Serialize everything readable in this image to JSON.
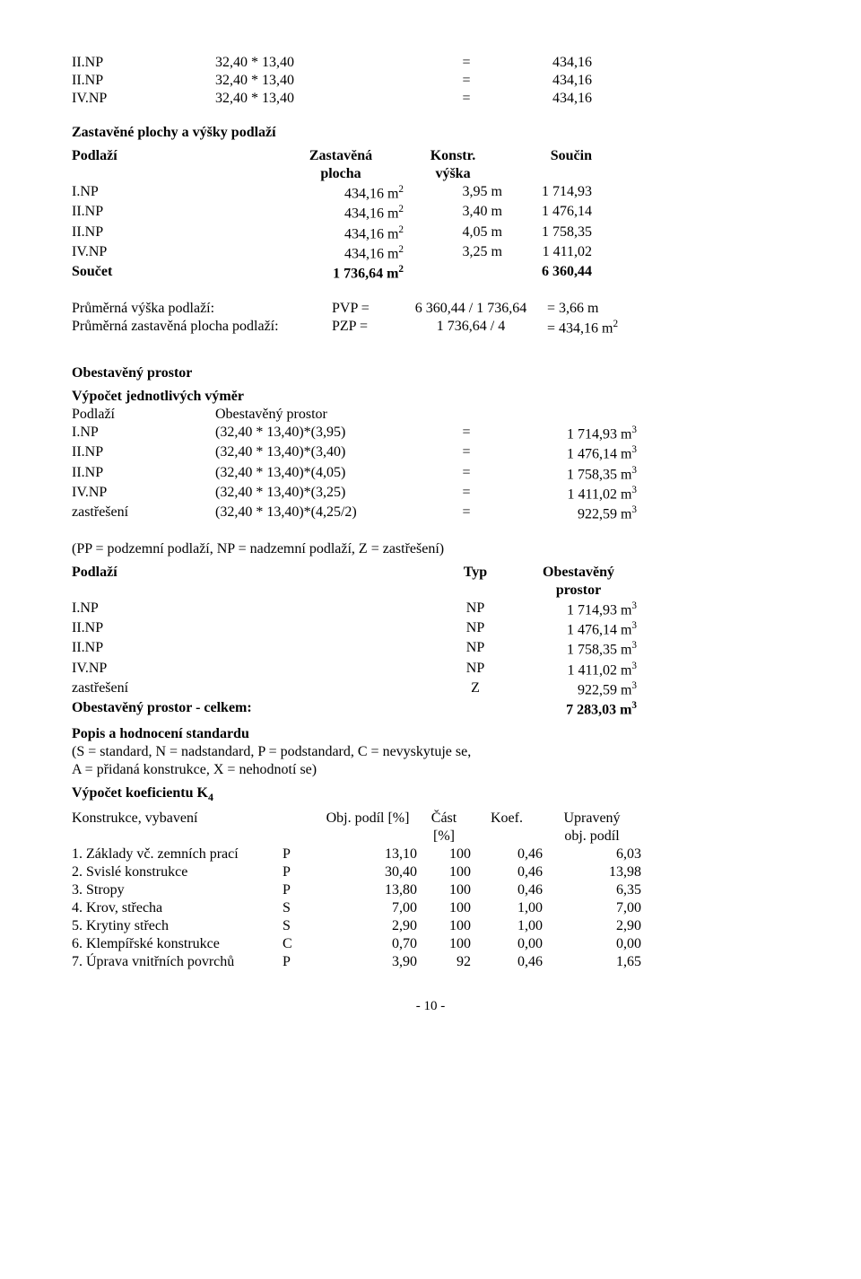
{
  "calc1": {
    "rows": [
      {
        "label": "II.NP",
        "expr": "32,40 * 13,40",
        "eq": "=",
        "val": "434,16"
      },
      {
        "label": "II.NP",
        "expr": "32,40 * 13,40",
        "eq": "=",
        "val": "434,16"
      },
      {
        "label": "IV.NP",
        "expr": "32,40 * 13,40",
        "eq": "=",
        "val": "434,16"
      }
    ]
  },
  "zas_title": "Zastavěné plochy a výšky podlaží",
  "zas_header": {
    "c1": "Podlaží",
    "c2a": "Zastavěná",
    "c2b": "plocha",
    "c3a": "Konstr.",
    "c3b": "výška",
    "c4": "Součin"
  },
  "zas_rows": [
    {
      "c1": "I.NP",
      "c2": "434,16 m",
      "c2sup": "2",
      "c3": "3,95 m",
      "c4": "1 714,93"
    },
    {
      "c1": "II.NP",
      "c2": "434,16 m",
      "c2sup": "2",
      "c3": "3,40 m",
      "c4": "1 476,14"
    },
    {
      "c1": "II.NP",
      "c2": "434,16 m",
      "c2sup": "2",
      "c3": "4,05 m",
      "c4": "1 758,35"
    },
    {
      "c1": "IV.NP",
      "c2": "434,16 m",
      "c2sup": "2",
      "c3": "3,25 m",
      "c4": "1 411,02"
    }
  ],
  "zas_sum": {
    "c1": "Součet",
    "c2": "1 736,64 m",
    "c2sup": "2",
    "c4": "6 360,44"
  },
  "pvp": {
    "l1": "Průměrná výška podlaží:",
    "l2": "Průměrná zastavěná plocha podlaží:",
    "k1": "PVP =",
    "k2": "PZP =",
    "e1": "6 360,44 / 1 736,64",
    "e2": "1 736,64 / 4",
    "r1": "= 3,66 m",
    "r2": "= 434,16 m",
    "r2sup": "2"
  },
  "obest_title": "Obestavěný prostor",
  "vjv_title": "Výpočet jednotlivých výměr",
  "vjv_header": {
    "c1": "Podlaží",
    "c2": "Obestavěný prostor"
  },
  "vjv_rows": [
    {
      "c1": "I.NP",
      "c2": "(32,40 * 13,40)*(3,95)",
      "eq": "=",
      "v": "1 714,93 m",
      "sup": "3"
    },
    {
      "c1": "II.NP",
      "c2": "(32,40 * 13,40)*(3,40)",
      "eq": "=",
      "v": "1 476,14 m",
      "sup": "3"
    },
    {
      "c1": "II.NP",
      "c2": "(32,40 * 13,40)*(4,05)",
      "eq": "=",
      "v": "1 758,35 m",
      "sup": "3"
    },
    {
      "c1": "IV.NP",
      "c2": "(32,40 * 13,40)*(3,25)",
      "eq": "=",
      "v": "1 411,02 m",
      "sup": "3"
    },
    {
      "c1": "zastřešení",
      "c2": "(32,40 * 13,40)*(4,25/2)",
      "eq": "=",
      "v": "922,59 m",
      "sup": "3"
    }
  ],
  "pp_note": "(PP = podzemní podlaží, NP = nadzemní podlaží, Z = zastřešení)",
  "typ_header": {
    "c1": "Podlaží",
    "c2": "Typ",
    "c3a": "Obestavěný",
    "c3b": "prostor"
  },
  "typ_rows": [
    {
      "c1": "I.NP",
      "c2": "NP",
      "v": "1 714,93 m",
      "sup": "3"
    },
    {
      "c1": "II.NP",
      "c2": "NP",
      "v": "1 476,14 m",
      "sup": "3"
    },
    {
      "c1": "II.NP",
      "c2": "NP",
      "v": "1 758,35 m",
      "sup": "3"
    },
    {
      "c1": "IV.NP",
      "c2": "NP",
      "v": "1 411,02 m",
      "sup": "3"
    },
    {
      "c1": "zastřešení",
      "c2": "Z",
      "v": "922,59 m",
      "sup": "3"
    }
  ],
  "typ_sum": {
    "label": "Obestavěný prostor - celkem:",
    "v": "7 283,03 m",
    "sup": "3"
  },
  "popis_title": "Popis a hodnocení standardu",
  "popis_note1": "(S = standard, N = nadstandard, P = podstandard, C = nevyskytuje se,",
  "popis_note2": "A = přidaná konstrukce, X = nehodnotí se)",
  "k4_title": "Výpočet koeficientu K",
  "k4_sub": "4",
  "k4_header": {
    "c1": "Konstrukce, vybavení",
    "c3": "Obj. podíl [%]",
    "c4a": "Část",
    "c4b": "[%]",
    "c5": "Koef.",
    "c6a": "Upravený",
    "c6b": "obj. podíl"
  },
  "k4_rows": [
    {
      "c1": "1. Základy vč. zemních prací",
      "c2": "P",
      "c3": "13,10",
      "c4": "100",
      "c5": "0,46",
      "c6": "6,03"
    },
    {
      "c1": "2. Svislé konstrukce",
      "c2": "P",
      "c3": "30,40",
      "c4": "100",
      "c5": "0,46",
      "c6": "13,98"
    },
    {
      "c1": "3. Stropy",
      "c2": "P",
      "c3": "13,80",
      "c4": "100",
      "c5": "0,46",
      "c6": "6,35"
    },
    {
      "c1": "4. Krov, střecha",
      "c2": "S",
      "c3": "7,00",
      "c4": "100",
      "c5": "1,00",
      "c6": "7,00"
    },
    {
      "c1": "5. Krytiny střech",
      "c2": "S",
      "c3": "2,90",
      "c4": "100",
      "c5": "1,00",
      "c6": "2,90"
    },
    {
      "c1": "6. Klempířské konstrukce",
      "c2": "C",
      "c3": "0,70",
      "c4": "100",
      "c5": "0,00",
      "c6": "0,00"
    },
    {
      "c1": "7. Úprava vnitřních povrchů",
      "c2": "P",
      "c3": "3,90",
      "c4": "92",
      "c5": "0,46",
      "c6": "1,65"
    }
  ],
  "page": "- 10 -"
}
